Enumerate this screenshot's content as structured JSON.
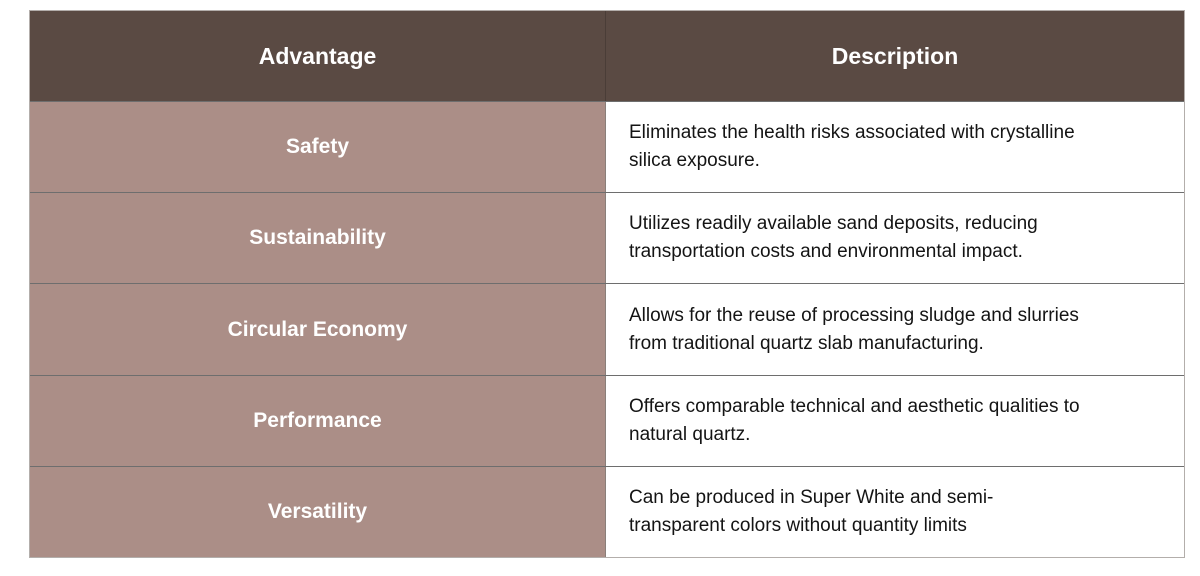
{
  "table": {
    "columns": [
      {
        "label": "Advantage"
      },
      {
        "label": "Description"
      }
    ],
    "rows": [
      {
        "advantage": "Safety",
        "description": "Eliminates the health risks associated with crystalline\nsilica exposure."
      },
      {
        "advantage": "Sustainability",
        "description": "Utilizes readily available sand deposits, reducing\ntransportation costs and environmental impact."
      },
      {
        "advantage": "Circular Economy",
        "description": "Allows for the reuse of processing sludge and slurries\nfrom traditional quartz slab manufacturing."
      },
      {
        "advantage": "Performance",
        "description": "Offers comparable technical and aesthetic qualities to\nnatural quartz."
      },
      {
        "advantage": "Versatility",
        "description": "Can be produced in Super White and semi-\ntransparent colors without quantity limits"
      }
    ],
    "colors": {
      "header_bg": "#5a4a43",
      "header_text": "#ffffff",
      "advantage_bg": "#ab8e87",
      "advantage_text": "#ffffff",
      "description_bg": "#ffffff",
      "description_text": "#141414",
      "inner_border": "#6e6e6e",
      "outer_border": "#b3aeab"
    }
  }
}
